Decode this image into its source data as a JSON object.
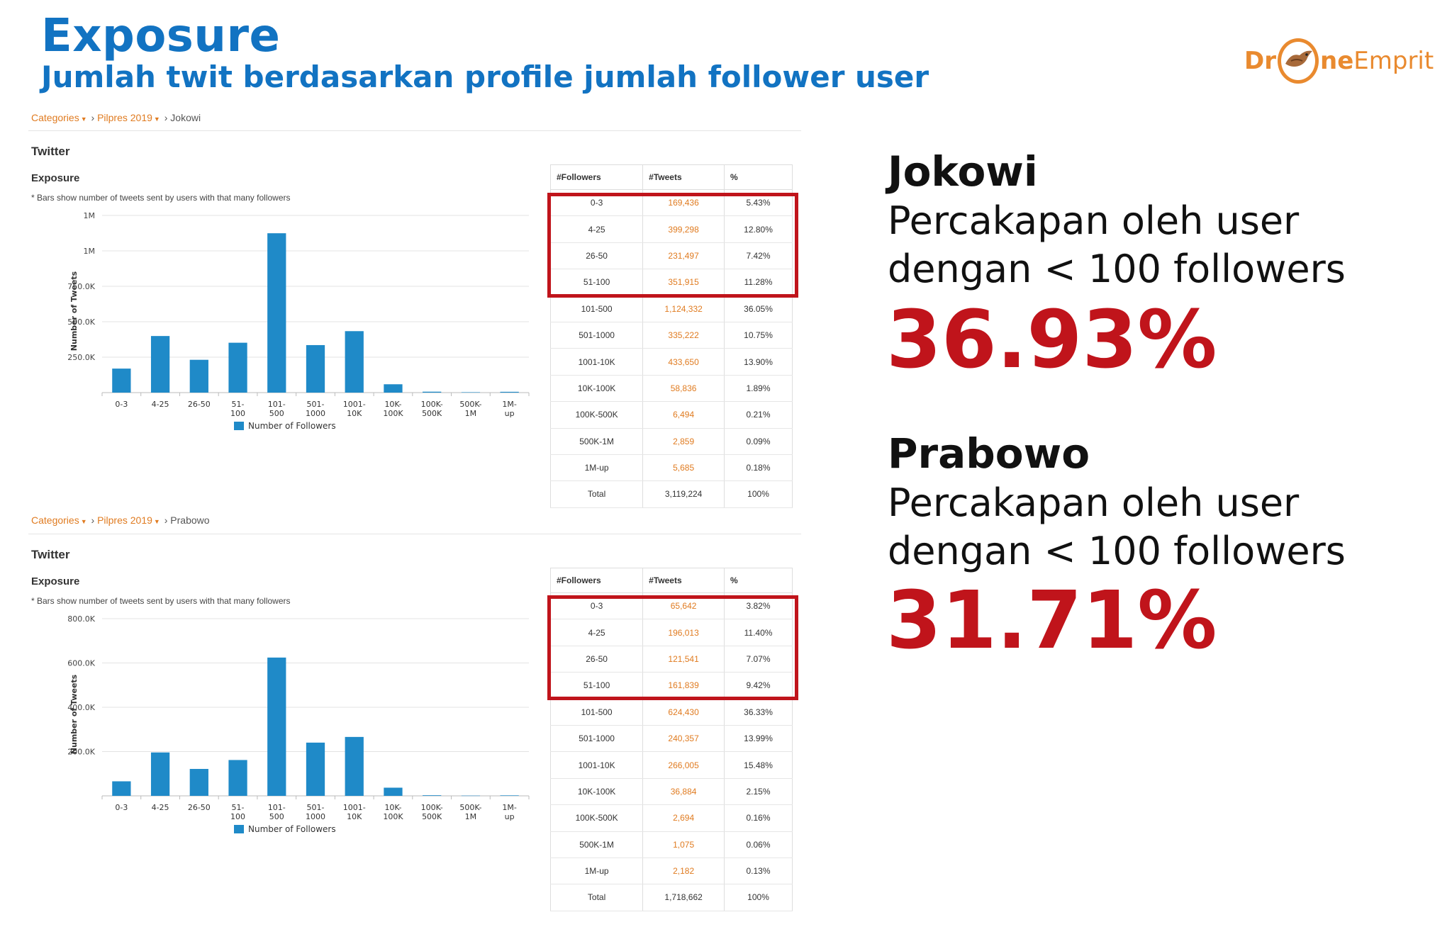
{
  "slide": {
    "title": "Exposure",
    "subtitle": "Jumlah twit berdasarkan profile jumlah follower user"
  },
  "logo": {
    "part1": "Dr",
    "part2": "ne",
    "part3": "Emprit"
  },
  "colors": {
    "title_blue": "#1273c2",
    "bar_blue": "#1f8ac8",
    "highlight_red": "#c0141b",
    "link_orange": "#e07b20"
  },
  "panels": [
    {
      "breadcrumb": {
        "cat": "Categories",
        "mid": "Pilpres 2019",
        "last": "Jokowi"
      },
      "section": "Twitter",
      "chart_title": "Exposure",
      "chart_note": "* Bars show number of tweets sent by users with that many followers",
      "table": {
        "headers": [
          "#Followers",
          "#Tweets",
          "%"
        ],
        "rows": [
          [
            "0-3",
            "169,436",
            "5.43%"
          ],
          [
            "4-25",
            "399,298",
            "12.80%"
          ],
          [
            "26-50",
            "231,497",
            "7.42%"
          ],
          [
            "51-100",
            "351,915",
            "11.28%"
          ],
          [
            "101-500",
            "1,124,332",
            "36.05%"
          ],
          [
            "501-1000",
            "335,222",
            "10.75%"
          ],
          [
            "1001-10K",
            "433,650",
            "13.90%"
          ],
          [
            "10K-100K",
            "58,836",
            "1.89%"
          ],
          [
            "100K-500K",
            "6,494",
            "0.21%"
          ],
          [
            "500K-1M",
            "2,859",
            "0.09%"
          ],
          [
            "1M-up",
            "5,685",
            "0.18%"
          ],
          [
            "Total",
            "3,119,224",
            "100%"
          ]
        ]
      }
    },
    {
      "breadcrumb": {
        "cat": "Categories",
        "mid": "Pilpres 2019",
        "last": "Prabowo"
      },
      "section": "Twitter",
      "chart_title": "Exposure",
      "chart_note": "* Bars show number of tweets sent by users with that many followers",
      "table": {
        "headers": [
          "#Followers",
          "#Tweets",
          "%"
        ],
        "rows": [
          [
            "0-3",
            "65,642",
            "3.82%"
          ],
          [
            "4-25",
            "196,013",
            "11.40%"
          ],
          [
            "26-50",
            "121,541",
            "7.07%"
          ],
          [
            "51-100",
            "161,839",
            "9.42%"
          ],
          [
            "101-500",
            "624,430",
            "36.33%"
          ],
          [
            "501-1000",
            "240,357",
            "13.99%"
          ],
          [
            "1001-10K",
            "266,005",
            "15.48%"
          ],
          [
            "10K-100K",
            "36,884",
            "2.15%"
          ],
          [
            "100K-500K",
            "2,694",
            "0.16%"
          ],
          [
            "500K-1M",
            "1,075",
            "0.06%"
          ],
          [
            "1M-up",
            "2,182",
            "0.13%"
          ],
          [
            "Total",
            "1,718,662",
            "100%"
          ]
        ]
      }
    }
  ],
  "summaries": [
    {
      "name": "Jokowi",
      "line1": "Percakapan oleh user",
      "line2": "dengan < 100 followers",
      "pct": "36.93%"
    },
    {
      "name": "Prabowo",
      "line1": "Percakapan oleh user",
      "line2": "dengan < 100 followers",
      "pct": "31.71%"
    }
  ],
  "chart_data": [
    {
      "type": "bar",
      "title": "Exposure",
      "xlabel": "",
      "ylabel": "Number of Tweets",
      "legend": "Number of Followers",
      "legend_position": "bottom",
      "categories": [
        "0-3",
        "4-25",
        "26-50",
        "51-100",
        "101-500",
        "501-1000",
        "1001-10K",
        "10K-100K",
        "100K-500K",
        "500K-1M",
        "1M-up"
      ],
      "category_labels": [
        [
          "0-3"
        ],
        [
          "4-25"
        ],
        [
          "26-50"
        ],
        [
          "51-",
          "100"
        ],
        [
          "101-",
          "500"
        ],
        [
          "501-",
          "1000"
        ],
        [
          "1001-",
          "10K"
        ],
        [
          "10K-",
          "100K"
        ],
        [
          "100K-",
          "500K"
        ],
        [
          "500K-",
          "1M"
        ],
        [
          "1M-",
          "up"
        ]
      ],
      "values": [
        169436,
        399298,
        231497,
        351915,
        1124332,
        335222,
        433650,
        58836,
        6494,
        2859,
        5685
      ],
      "yticks": [
        250000,
        500000,
        750000,
        1000000,
        1250000
      ],
      "ytick_labels": [
        "250.0K",
        "500.0K",
        "750.0K",
        "1M",
        "1M"
      ],
      "ylim": [
        0,
        1250000
      ],
      "grid": true
    },
    {
      "type": "bar",
      "title": "Exposure",
      "xlabel": "",
      "ylabel": "Number of Tweets",
      "legend": "Number of Followers",
      "legend_position": "bottom",
      "categories": [
        "0-3",
        "4-25",
        "26-50",
        "51-100",
        "101-500",
        "501-1000",
        "1001-10K",
        "10K-100K",
        "100K-500K",
        "500K-1M",
        "1M-up"
      ],
      "category_labels": [
        [
          "0-3"
        ],
        [
          "4-25"
        ],
        [
          "26-50"
        ],
        [
          "51-",
          "100"
        ],
        [
          "101-",
          "500"
        ],
        [
          "501-",
          "1000"
        ],
        [
          "1001-",
          "10K"
        ],
        [
          "10K-",
          "100K"
        ],
        [
          "100K-",
          "500K"
        ],
        [
          "500K-",
          "1M"
        ],
        [
          "1M-",
          "up"
        ]
      ],
      "values": [
        65642,
        196013,
        121541,
        161839,
        624430,
        240357,
        266005,
        36884,
        2694,
        1075,
        2182
      ],
      "yticks": [
        200000,
        400000,
        600000,
        800000
      ],
      "ytick_labels": [
        "200.0K",
        "400.0K",
        "600.0K",
        "800.0K"
      ],
      "ylim": [
        0,
        800000
      ],
      "grid": true
    }
  ]
}
